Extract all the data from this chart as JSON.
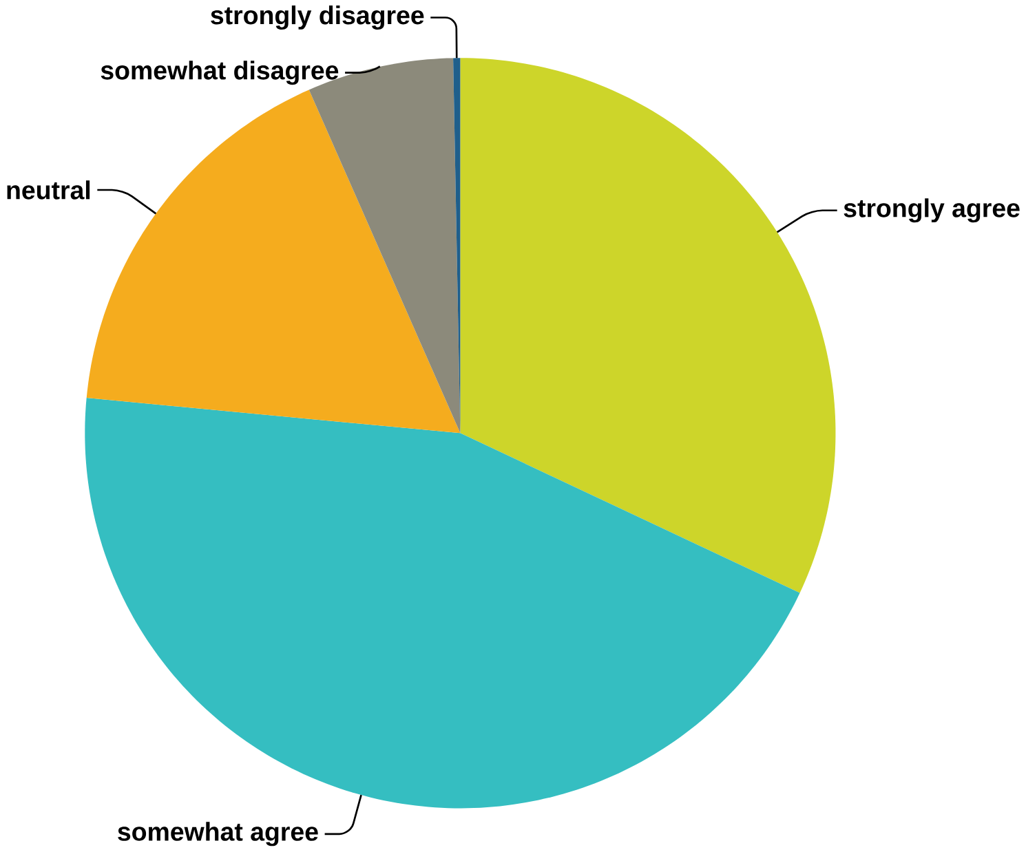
{
  "chart_data": {
    "type": "pie",
    "categories": [
      "strongly agree",
      "somewhat agree",
      "neutral",
      "somewhat disagree",
      "strongly disagree"
    ],
    "values": [
      32.0,
      44.5,
      16.9,
      6.3,
      0.3
    ],
    "colors": [
      "#cdd52a",
      "#35bec1",
      "#f5ac1e",
      "#8c8a7b",
      "#1f5f8b"
    ]
  }
}
